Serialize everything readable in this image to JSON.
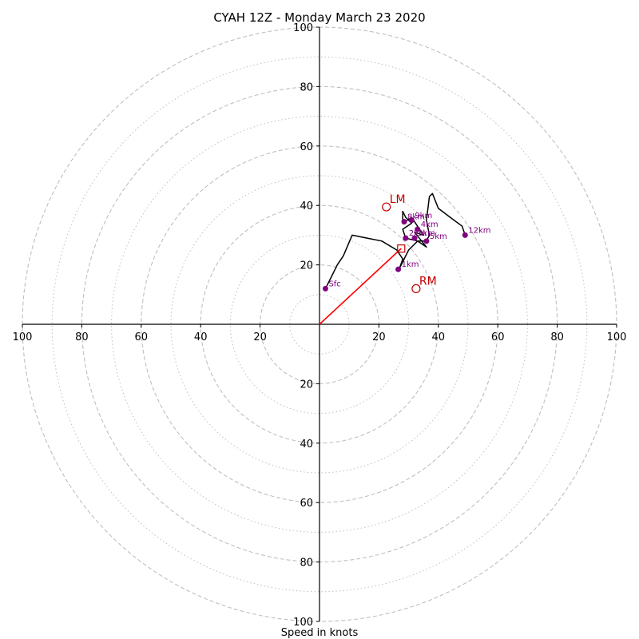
{
  "chart_data": {
    "type": "hodograph",
    "title": "CYAH 12Z - Monday March 23 2020",
    "xlabel": "Speed in knots",
    "units": "knots",
    "xlim": [
      -100,
      100
    ],
    "ylim": [
      -100,
      100
    ],
    "major_rings": [
      20,
      40,
      60,
      80,
      100
    ],
    "minor_rings": [
      10,
      30,
      50,
      70,
      90
    ],
    "tick_labels": [
      "100",
      "80",
      "60",
      "40",
      "20",
      "20",
      "40",
      "60",
      "80",
      "100"
    ],
    "y_tick_labels_top": [
      "20",
      "40",
      "60",
      "80",
      "100"
    ],
    "y_tick_labels_bottom": [
      "20",
      "40",
      "60",
      "80",
      "100"
    ],
    "colors": {
      "ring": "#bfbfbf",
      "trace": "#000000",
      "height_marker": "#800080",
      "storm_motion": "#c00000",
      "mean_wind_vector": "#ff0000"
    },
    "trace": [
      [
        2,
        12
      ],
      [
        4,
        16
      ],
      [
        6,
        20
      ],
      [
        8,
        23
      ],
      [
        11,
        30
      ],
      [
        16,
        29
      ],
      [
        21,
        28
      ],
      [
        26,
        25
      ],
      [
        28,
        22
      ],
      [
        27,
        19
      ],
      [
        28,
        21
      ],
      [
        30,
        25
      ],
      [
        33,
        28
      ],
      [
        29,
        29
      ],
      [
        28,
        32
      ],
      [
        31,
        34
      ],
      [
        29,
        36
      ],
      [
        28,
        38
      ],
      [
        28,
        34
      ],
      [
        31,
        36
      ],
      [
        35,
        30
      ],
      [
        32,
        31
      ],
      [
        36,
        26
      ],
      [
        33,
        28
      ],
      [
        36,
        28
      ],
      [
        37,
        30
      ],
      [
        36,
        35
      ],
      [
        37,
        43
      ],
      [
        38,
        44
      ],
      [
        40,
        39
      ],
      [
        44,
        36
      ],
      [
        48,
        33
      ],
      [
        49,
        30
      ]
    ],
    "height_markers": [
      {
        "label": "Sfc",
        "u": 2,
        "v": 12
      },
      {
        "label": "1km",
        "u": 26.5,
        "v": 18.5
      },
      {
        "label": "2km",
        "u": 29,
        "v": 29
      },
      {
        "label": "3km",
        "u": 32,
        "v": 29
      },
      {
        "label": "4km",
        "u": 33,
        "v": 32
      },
      {
        "label": "5km",
        "u": 36,
        "v": 28
      },
      {
        "label": "8km",
        "u": 28.5,
        "v": 34.5
      },
      {
        "label": "9km",
        "u": 31,
        "v": 35
      },
      {
        "label": "12km",
        "u": 49,
        "v": 30
      }
    ],
    "storm_motions": [
      {
        "label": "LM",
        "u": 22.5,
        "v": 39.5
      },
      {
        "label": "RM",
        "u": 32.5,
        "v": 12
      }
    ],
    "mean_wind": {
      "u": 27.5,
      "v": 25.5
    }
  }
}
